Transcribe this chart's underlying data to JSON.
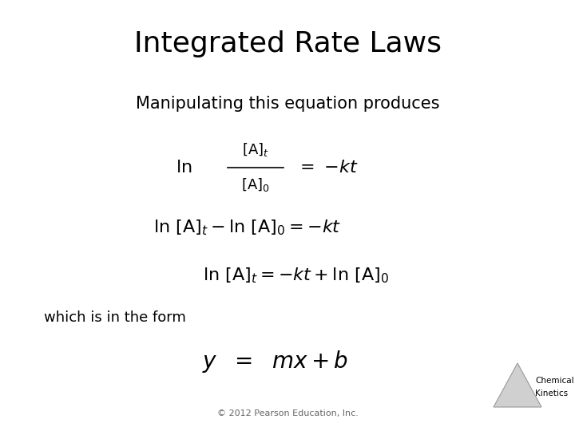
{
  "title": "Integrated Rate Laws",
  "bg_color": "#ffffff",
  "title_fontsize": 26,
  "subtitle": "Manipulating this equation produces",
  "subtitle_fontsize": 15,
  "eq_fontsize": 16,
  "eq_small_fontsize": 13,
  "eq4_fontsize": 20,
  "footer": "© 2012 Pearson Education, Inc.",
  "footer_fontsize": 8,
  "which_fontsize": 13
}
